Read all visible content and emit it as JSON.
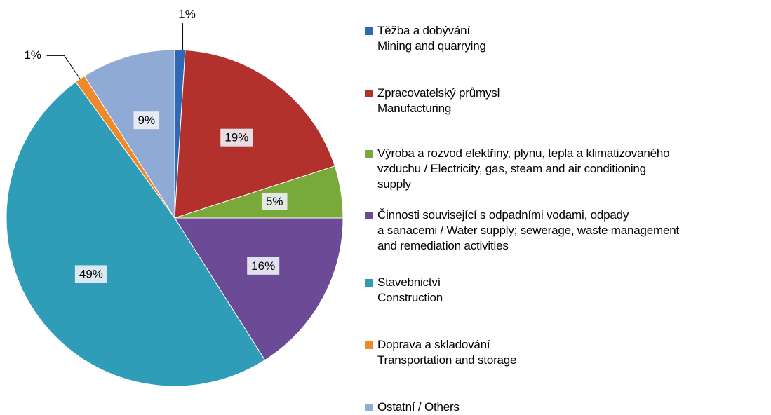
{
  "chart_data": {
    "type": "pie",
    "categories": [
      "Těžba a dobývání\nMining and quarrying",
      "Zpracovatelský průmysl\nManufacturing",
      "Výroba a rozvod elektřiny, plynu, tepla a klimatizovaného\nvzduchu / Electricity, gas, steam and air conditioning\nsupply",
      "Činnosti související s odpadními vodami, odpady\na sanacemi / Water supply; sewerage, waste management\nand remediation activities",
      "Stavebnictví\nConstruction",
      "Doprava a skladování\nTransportation and storage",
      "Ostatní / Others"
    ],
    "values": [
      1,
      19,
      5,
      16,
      49,
      1,
      9
    ],
    "value_labels": [
      "1%",
      "19%",
      "5%",
      "16%",
      "49%",
      "1%",
      "9%"
    ],
    "colors": [
      "#2f68b4",
      "#b2312d",
      "#7aa93b",
      "#6b4a96",
      "#2f9db7",
      "#ee8a2b",
      "#8eaad5"
    ],
    "legend": "right"
  }
}
